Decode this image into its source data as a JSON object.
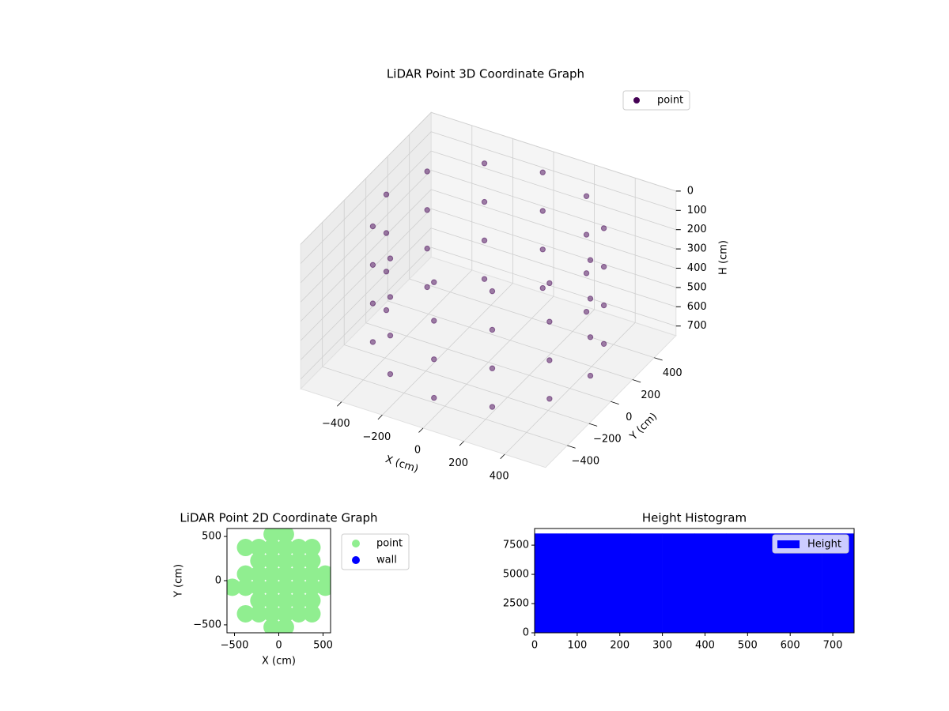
{
  "chart_data": [
    {
      "type": "scatter3d",
      "title": "LiDAR Point 3D Coordinate Graph",
      "xlabel": "X (cm)",
      "ylabel": "Y (cm)",
      "zlabel": "H (cm)",
      "xlim": [
        -600,
        600
      ],
      "ylim": [
        -600,
        600
      ],
      "zlim": [
        0,
        750
      ],
      "z_inverted": true,
      "grid": true,
      "legend": "upper right",
      "xticks": [
        {
          "value": -400,
          "label": "−400"
        },
        {
          "value": -200,
          "label": "−200"
        },
        0,
        200,
        400
      ],
      "yticks": [
        {
          "value": -400,
          "label": "−400"
        },
        {
          "value": -200,
          "label": "−200"
        },
        0,
        200,
        400
      ],
      "zticks": [
        0,
        100,
        200,
        300,
        400,
        500,
        600,
        700
      ],
      "series": [
        {
          "name": "point",
          "color": "#440154",
          "alpha": 0.5,
          "x": [
            500,
            433,
            250,
            0,
            -250,
            -433,
            -500,
            -433,
            -250,
            0,
            250,
            433,
            500,
            433,
            250,
            0,
            -250,
            -433,
            -500,
            -433,
            -250,
            0,
            250,
            433,
            500,
            433,
            250,
            0,
            -250,
            -433,
            -500,
            -433,
            -250,
            0,
            250,
            433,
            500,
            433,
            250,
            0,
            -250,
            -433,
            -500,
            -433,
            -250,
            0,
            250,
            433
          ],
          "y": [
            0,
            250,
            433,
            500,
            433,
            250,
            0,
            -250,
            -433,
            -500,
            -433,
            -250,
            0,
            250,
            433,
            500,
            433,
            250,
            0,
            -250,
            -433,
            -500,
            -433,
            -250,
            0,
            250,
            433,
            500,
            433,
            250,
            0,
            -250,
            -433,
            -500,
            -433,
            -250,
            0,
            250,
            433,
            500,
            433,
            250,
            0,
            -250,
            -433,
            -500,
            -433,
            -250
          ],
          "z": [
            50,
            50,
            50,
            50,
            50,
            50,
            50,
            50,
            50,
            50,
            50,
            50,
            250,
            250,
            250,
            250,
            250,
            250,
            250,
            250,
            250,
            250,
            250,
            250,
            450,
            450,
            450,
            450,
            450,
            450,
            450,
            450,
            450,
            450,
            450,
            450,
            650,
            650,
            650,
            650,
            650,
            650,
            650,
            650,
            650,
            650,
            650,
            650
          ]
        }
      ]
    },
    {
      "type": "scatter",
      "title": "LiDAR Point 2D Coordinate Graph",
      "xlabel": "X (cm)",
      "ylabel": "Y (cm)",
      "xlim": [
        -585,
        585
      ],
      "ylim": [
        -590,
        590
      ],
      "legend": "outside right",
      "xticks": [
        {
          "value": -500,
          "label": "−500"
        },
        0,
        500
      ],
      "yticks": [
        {
          "value": -500,
          "label": "−500"
        },
        0,
        500
      ],
      "series": [
        {
          "name": "point",
          "color": "#90ee90",
          "x": [
            -525,
            -375,
            -375,
            -375,
            -375,
            -225,
            -225,
            -225,
            -225,
            -225,
            -225,
            -75,
            -75,
            -75,
            -75,
            -75,
            -75,
            -75,
            -75,
            75,
            75,
            75,
            75,
            75,
            75,
            75,
            75,
            225,
            225,
            225,
            225,
            225,
            225,
            375,
            375,
            375,
            375,
            375,
            375,
            525,
            525
          ],
          "y": [
            -75,
            375,
            75,
            -75,
            -375,
            375,
            225,
            75,
            -75,
            -225,
            -375,
            525,
            375,
            225,
            75,
            -75,
            -225,
            -375,
            -525,
            525,
            375,
            225,
            75,
            -75,
            -225,
            -375,
            -525,
            375,
            225,
            75,
            -75,
            -225,
            -375,
            375,
            225,
            75,
            -75,
            -225,
            -375,
            75,
            -75
          ]
        },
        {
          "name": "wall",
          "color": "#0000ff",
          "x": [],
          "y": []
        }
      ]
    },
    {
      "type": "hist",
      "title": "Height Histogram",
      "legend": "upper right",
      "xlim": [
        0,
        750
      ],
      "ylim": [
        0,
        8925
      ],
      "xticks": [
        0,
        100,
        200,
        300,
        400,
        500,
        600,
        700
      ],
      "yticks": [
        0,
        2500,
        5000,
        7500
      ],
      "series": [
        {
          "name": "Height",
          "color": "#0000ff",
          "bins": [
            0,
            75,
            150,
            225,
            300,
            375,
            450,
            525,
            600,
            675,
            750
          ],
          "values": [
            8500,
            8500,
            8500,
            8500,
            8500,
            8500,
            8500,
            8500,
            8500,
            8500
          ]
        }
      ]
    }
  ]
}
